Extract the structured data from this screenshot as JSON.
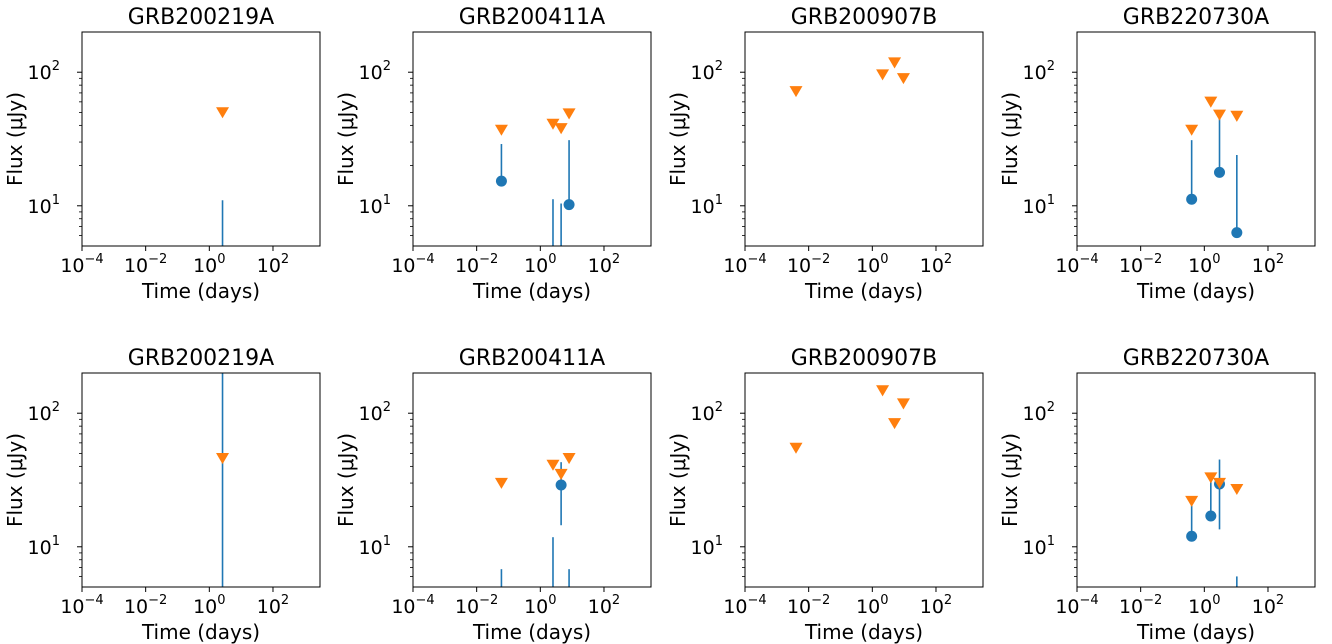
{
  "colors": {
    "detection": "#1f77b4",
    "upper_limit": "#ff7f0e",
    "axis": "#000000"
  },
  "chart_data": [
    {
      "type": "scatter",
      "title": "GRB200219A",
      "xlabel": "Time (days)",
      "ylabel": "Flux (μJy)",
      "xscale": "log",
      "yscale": "log",
      "xlim": [
        0.0001,
        3000
      ],
      "ylim": [
        5,
        200
      ],
      "xticks": [
        {
          "base": "10",
          "exp": "−4",
          "value": 0.0001
        },
        {
          "base": "10",
          "exp": "−2",
          "value": 0.01
        },
        {
          "base": "10",
          "exp": "0",
          "value": 1
        },
        {
          "base": "10",
          "exp": "2",
          "value": 100
        }
      ],
      "yticks": [
        {
          "base": "10",
          "exp": "1",
          "value": 10
        },
        {
          "base": "10",
          "exp": "2",
          "value": 100
        }
      ],
      "detections": [
        {
          "x": 2.6,
          "y": 0.3,
          "y_err_high": 11
        }
      ],
      "upper_limits": [
        {
          "x": 2.6,
          "y": 50
        }
      ]
    },
    {
      "type": "scatter",
      "title": "GRB200411A",
      "xlabel": "Time (days)",
      "ylabel": "Flux (μJy)",
      "xscale": "log",
      "yscale": "log",
      "xlim": [
        0.0001,
        3000
      ],
      "ylim": [
        5,
        200
      ],
      "xticks": [
        {
          "base": "10",
          "exp": "−4",
          "value": 0.0001
        },
        {
          "base": "10",
          "exp": "−2",
          "value": 0.01
        },
        {
          "base": "10",
          "exp": "0",
          "value": 1
        },
        {
          "base": "10",
          "exp": "2",
          "value": 100
        }
      ],
      "yticks": [
        {
          "base": "10",
          "exp": "1",
          "value": 10
        },
        {
          "base": "10",
          "exp": "2",
          "value": 100
        }
      ],
      "detections": [
        {
          "x": 0.06,
          "y": 15.3,
          "y_err_high": 29
        },
        {
          "x": 2.5,
          "y": 0.3,
          "y_err_high": 11.2
        },
        {
          "x": 4.5,
          "y": 0.3,
          "y_err_high": 10.4
        },
        {
          "x": 8.0,
          "y": 10.2,
          "y_err_high": 31
        }
      ],
      "upper_limits": [
        {
          "x": 0.06,
          "y": 37
        },
        {
          "x": 2.5,
          "y": 41
        },
        {
          "x": 4.5,
          "y": 38
        },
        {
          "x": 8.0,
          "y": 49
        }
      ]
    },
    {
      "type": "scatter",
      "title": "GRB200907B",
      "xlabel": "Time (days)",
      "ylabel": "Flux (μJy)",
      "xscale": "log",
      "yscale": "log",
      "xlim": [
        0.0001,
        3000
      ],
      "ylim": [
        5,
        200
      ],
      "xticks": [
        {
          "base": "10",
          "exp": "−4",
          "value": 0.0001
        },
        {
          "base": "10",
          "exp": "−2",
          "value": 0.01
        },
        {
          "base": "10",
          "exp": "0",
          "value": 1
        },
        {
          "base": "10",
          "exp": "2",
          "value": 100
        }
      ],
      "yticks": [
        {
          "base": "10",
          "exp": "1",
          "value": 10
        },
        {
          "base": "10",
          "exp": "2",
          "value": 100
        }
      ],
      "detections": [],
      "upper_limits": [
        {
          "x": 0.004,
          "y": 72
        },
        {
          "x": 2.1,
          "y": 96
        },
        {
          "x": 5.0,
          "y": 118
        },
        {
          "x": 9.5,
          "y": 90
        }
      ]
    },
    {
      "type": "scatter",
      "title": "GRB220730A",
      "xlabel": "Time (days)",
      "ylabel": "Flux (μJy)",
      "xscale": "log",
      "yscale": "log",
      "xlim": [
        0.0001,
        3000
      ],
      "ylim": [
        5,
        200
      ],
      "xticks": [
        {
          "base": "10",
          "exp": "−4",
          "value": 0.0001
        },
        {
          "base": "10",
          "exp": "−2",
          "value": 0.01
        },
        {
          "base": "10",
          "exp": "0",
          "value": 1
        },
        {
          "base": "10",
          "exp": "2",
          "value": 100
        }
      ],
      "yticks": [
        {
          "base": "10",
          "exp": "1",
          "value": 10
        },
        {
          "base": "10",
          "exp": "2",
          "value": 100
        }
      ],
      "detections": [
        {
          "x": 0.4,
          "y": 11.2,
          "y_err_high": 31
        },
        {
          "x": 3.0,
          "y": 17.8,
          "y_err_high": 48
        },
        {
          "x": 10.5,
          "y": 6.3,
          "y_err_high": 24
        }
      ],
      "upper_limits": [
        {
          "x": 0.4,
          "y": 37
        },
        {
          "x": 1.6,
          "y": 60
        },
        {
          "x": 3.0,
          "y": 48
        },
        {
          "x": 10.5,
          "y": 47
        }
      ]
    },
    {
      "type": "scatter",
      "title": "GRB200219A",
      "xlabel": "Time (days)",
      "ylabel": "Flux (μJy)",
      "xscale": "log",
      "yscale": "log",
      "xlim": [
        0.0001,
        3000
      ],
      "ylim": [
        5,
        200
      ],
      "xticks": [
        {
          "base": "10",
          "exp": "−4",
          "value": 0.0001
        },
        {
          "base": "10",
          "exp": "−2",
          "value": 0.01
        },
        {
          "base": "10",
          "exp": "0",
          "value": 1
        },
        {
          "base": "10",
          "exp": "2",
          "value": 100
        }
      ],
      "yticks": [
        {
          "base": "10",
          "exp": "1",
          "value": 10
        },
        {
          "base": "10",
          "exp": "2",
          "value": 100
        }
      ],
      "detections": [
        {
          "x": 2.6,
          "y": 0.3,
          "y_err_high": 220
        }
      ],
      "upper_limits": [
        {
          "x": 2.6,
          "y": 46
        }
      ]
    },
    {
      "type": "scatter",
      "title": "GRB200411A",
      "xlabel": "Time (days)",
      "ylabel": "Flux (μJy)",
      "xscale": "log",
      "yscale": "log",
      "xlim": [
        0.0001,
        3000
      ],
      "ylim": [
        5,
        200
      ],
      "xticks": [
        {
          "base": "10",
          "exp": "−4",
          "value": 0.0001
        },
        {
          "base": "10",
          "exp": "−2",
          "value": 0.01
        },
        {
          "base": "10",
          "exp": "0",
          "value": 1
        },
        {
          "base": "10",
          "exp": "2",
          "value": 100
        }
      ],
      "yticks": [
        {
          "base": "10",
          "exp": "1",
          "value": 10
        },
        {
          "base": "10",
          "exp": "2",
          "value": 100
        }
      ],
      "detections": [
        {
          "x": 0.06,
          "y": 0.3,
          "y_err_high": 6.8
        },
        {
          "x": 2.5,
          "y": 0.3,
          "y_err_high": 11.8
        },
        {
          "x": 4.5,
          "y": 29,
          "y_err_low": 14.5,
          "y_err_high": 43
        },
        {
          "x": 8.0,
          "y": 0.3,
          "y_err_high": 6.8
        }
      ],
      "upper_limits": [
        {
          "x": 0.06,
          "y": 30
        },
        {
          "x": 2.5,
          "y": 41
        },
        {
          "x": 4.5,
          "y": 35
        },
        {
          "x": 8.0,
          "y": 46
        }
      ]
    },
    {
      "type": "scatter",
      "title": "GRB200907B",
      "xlabel": "Time (days)",
      "ylabel": "Flux (μJy)",
      "xscale": "log",
      "yscale": "log",
      "xlim": [
        0.0001,
        3000
      ],
      "ylim": [
        5,
        200
      ],
      "xticks": [
        {
          "base": "10",
          "exp": "−4",
          "value": 0.0001
        },
        {
          "base": "10",
          "exp": "−2",
          "value": 0.01
        },
        {
          "base": "10",
          "exp": "0",
          "value": 1
        },
        {
          "base": "10",
          "exp": "2",
          "value": 100
        }
      ],
      "yticks": [
        {
          "base": "10",
          "exp": "1",
          "value": 10
        },
        {
          "base": "10",
          "exp": "2",
          "value": 100
        }
      ],
      "detections": [],
      "upper_limits": [
        {
          "x": 0.004,
          "y": 55
        },
        {
          "x": 2.1,
          "y": 148
        },
        {
          "x": 5.0,
          "y": 84
        },
        {
          "x": 9.5,
          "y": 118
        }
      ]
    },
    {
      "type": "scatter",
      "title": "GRB220730A",
      "xlabel": "Time (days)",
      "ylabel": "Flux (μJy)",
      "xscale": "log",
      "yscale": "log",
      "xlim": [
        0.0001,
        3000
      ],
      "ylim": [
        5,
        200
      ],
      "xticks": [
        {
          "base": "10",
          "exp": "−4",
          "value": 0.0001
        },
        {
          "base": "10",
          "exp": "−2",
          "value": 0.01
        },
        {
          "base": "10",
          "exp": "0",
          "value": 1
        },
        {
          "base": "10",
          "exp": "2",
          "value": 100
        }
      ],
      "yticks": [
        {
          "base": "10",
          "exp": "1",
          "value": 10
        },
        {
          "base": "10",
          "exp": "2",
          "value": 100
        }
      ],
      "detections": [
        {
          "x": 0.4,
          "y": 12,
          "y_err_high": 21
        },
        {
          "x": 1.6,
          "y": 17,
          "y_err_high": 32
        },
        {
          "x": 3.0,
          "y": 29.5,
          "y_err_low": 13.5,
          "y_err_high": 45
        },
        {
          "x": 10.5,
          "y": 0.3,
          "y_err_high": 6
        }
      ],
      "upper_limits": [
        {
          "x": 0.4,
          "y": 22
        },
        {
          "x": 1.6,
          "y": 33
        },
        {
          "x": 3.0,
          "y": 30
        },
        {
          "x": 10.5,
          "y": 27
        }
      ]
    }
  ]
}
